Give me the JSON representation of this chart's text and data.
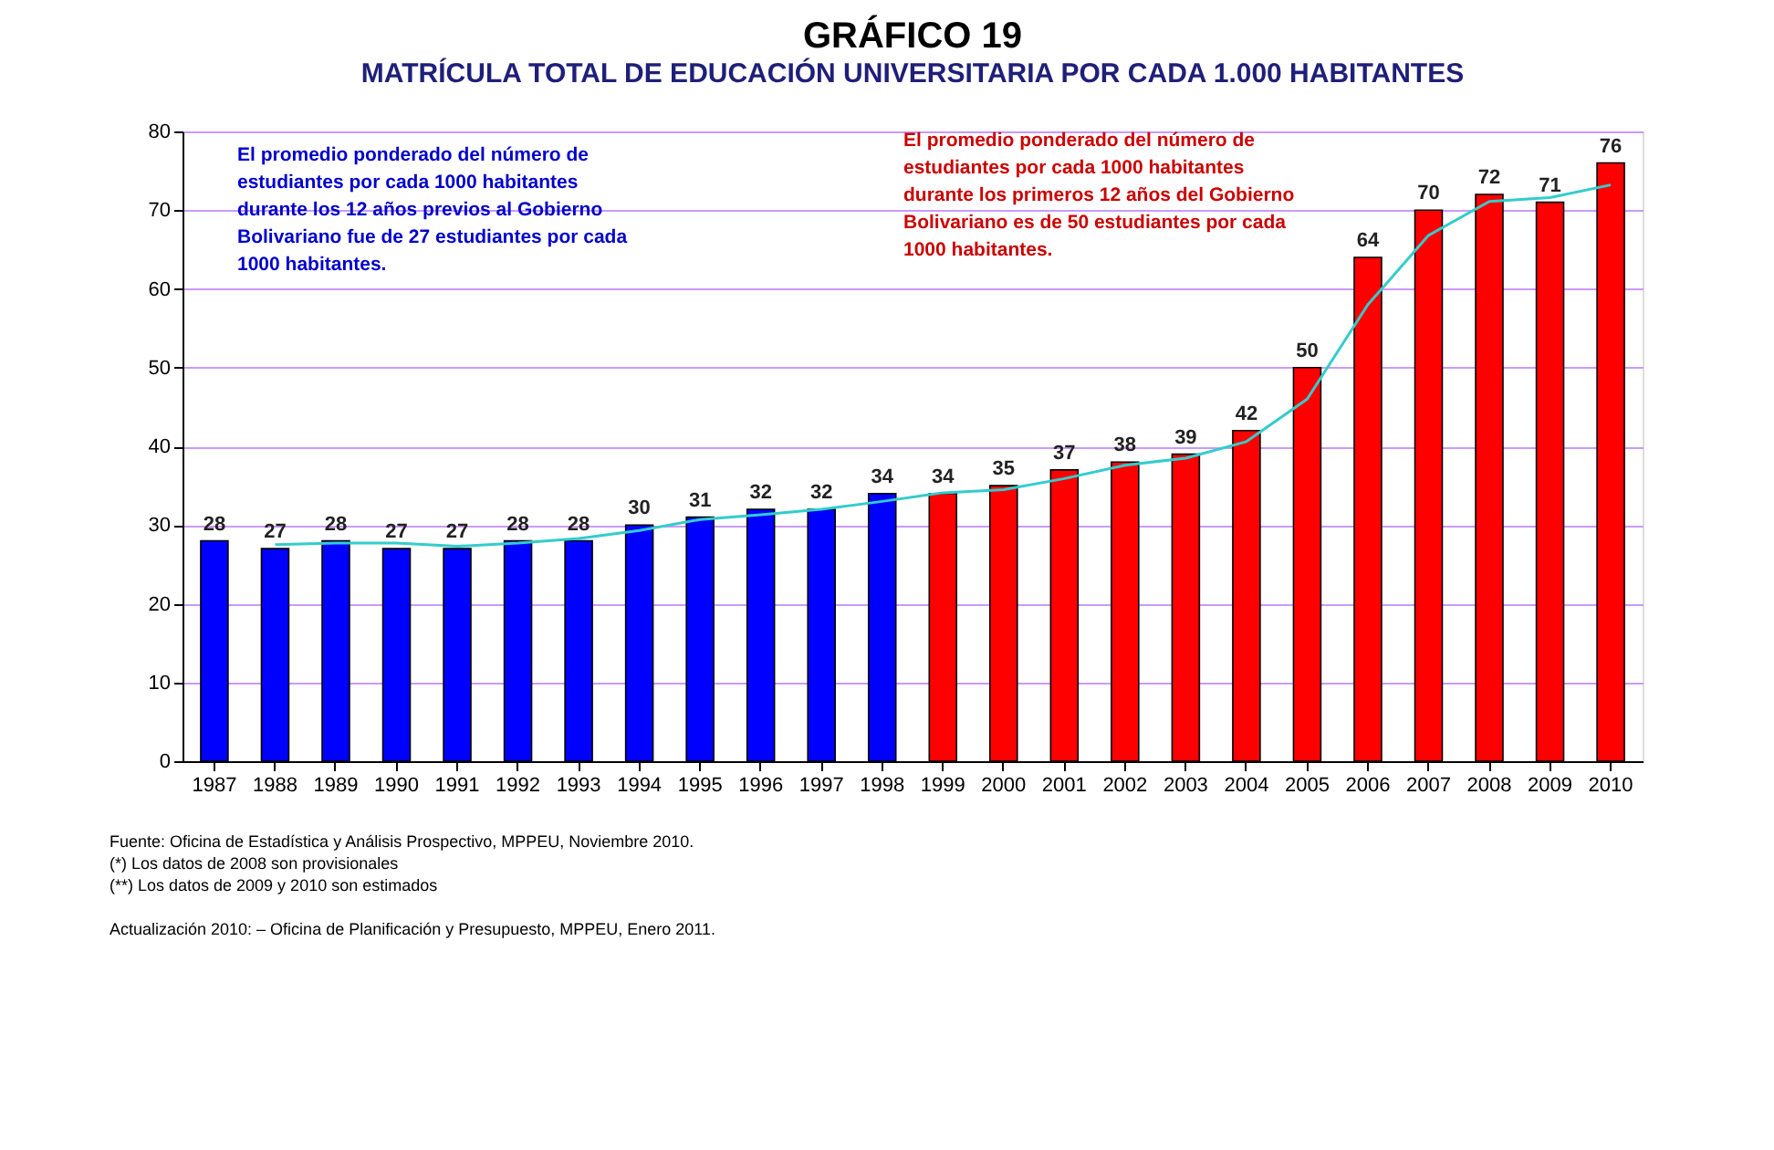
{
  "chart_data": {
    "type": "bar",
    "title": "GRÁFICO 19",
    "subtitle": "MATRÍCULA TOTAL DE EDUCACIÓN UNIVERSITARIA POR CADA 1.000 HABITANTES",
    "categories": [
      "1987",
      "1988",
      "1989",
      "1990",
      "1991",
      "1992",
      "1993",
      "1994",
      "1995",
      "1996",
      "1997",
      "1998",
      "1999",
      "2000",
      "2001",
      "2002",
      "2003",
      "2004",
      "2005",
      "2006",
      "2007",
      "2008",
      "2009",
      "2010"
    ],
    "series": [
      {
        "value_labels": [
          "28",
          "27",
          "28",
          "27",
          "27",
          "28",
          "28",
          "30",
          "31",
          "32",
          "32",
          "34",
          "34",
          "35",
          "37",
          "38",
          "39",
          "42",
          "50",
          "64",
          "70",
          "72",
          "71",
          "76"
        ],
        "colors": [
          "#0000ff",
          "#0000ff",
          "#0000ff",
          "#0000ff",
          "#0000ff",
          "#0000ff",
          "#0000ff",
          "#0000ff",
          "#0000ff",
          "#0000ff",
          "#0000ff",
          "#0000ff",
          "#ff0000",
          "#ff0000",
          "#ff0000",
          "#ff0000",
          "#ff0000",
          "#ff0000",
          "#ff0000",
          "#ff0000",
          "#ff0000",
          "#ff0000",
          "#ff0000",
          "#ff0000"
        ],
        "values": [
          28,
          27,
          28,
          27,
          27,
          28,
          28,
          30,
          31,
          32,
          32,
          34,
          34,
          35,
          37,
          38,
          39,
          42,
          50,
          64,
          70,
          72,
          71,
          76
        ]
      },
      {
        "type": "line",
        "color": "#33cccc",
        "values": [
          null,
          27.5,
          27.7,
          27.7,
          27.3,
          27.7,
          28.3,
          29.3,
          30.7,
          31.3,
          32,
          33,
          34.1,
          34.5,
          35.9,
          37.6,
          38.5,
          40.6,
          46,
          58,
          66.8,
          71.1,
          71.6,
          73.2
        ]
      }
    ],
    "ylim": [
      0,
      80
    ],
    "yticks": [
      0,
      10,
      20,
      30,
      40,
      50,
      60,
      70,
      80
    ],
    "grid": "y",
    "annotations": [
      "El promedio ponderado del número de estudiantes por cada 1000 habitantes durante los 12 años previos  al Gobierno Bolivariano fue de 27 estudiantes por cada 1000 habitantes.",
      "El promedio ponderado del número de estudiantes por cada 1000 habitantes durante los primeros 12 años del Gobierno Bolivariano es de 50 estudiantes por cada 1000 habitantes.",
      "Fuente:  Oficina de Estadística y Análisis Prospectivo, MPPEU, Noviembre 2010.",
      "(*) Los datos de  2008 son provisionales",
      "(**) Los datos de 2009 y 2010 son estimados",
      "Actualización 2010: – Oficina de Planificación y Presupuesto, MPPEU, Enero 2011."
    ]
  }
}
